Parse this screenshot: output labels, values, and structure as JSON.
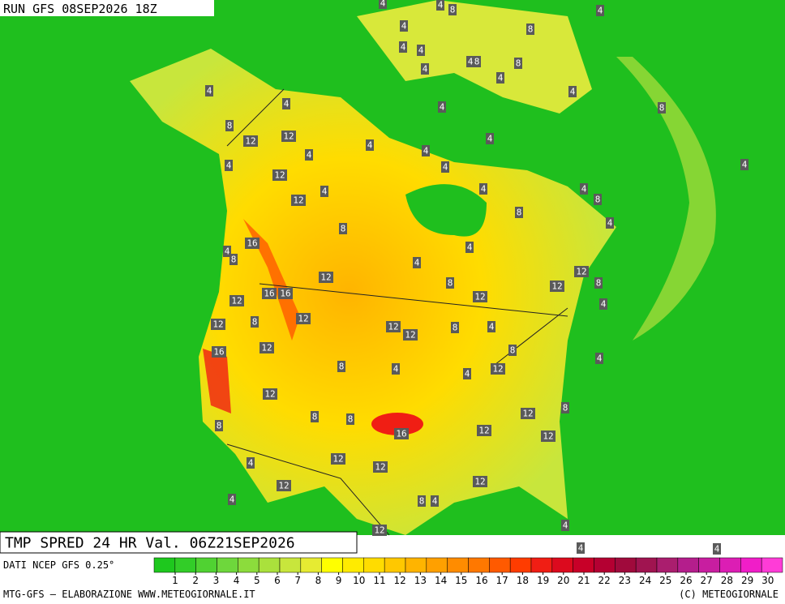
{
  "header": {
    "run": "RUN GFS 08SEP2026 18Z"
  },
  "map": {
    "labels": [
      4,
      4,
      8,
      4,
      4,
      8,
      4,
      4,
      4,
      8,
      8,
      4,
      4,
      4,
      4,
      4,
      4,
      8,
      8,
      12,
      4,
      4,
      4,
      4,
      4,
      4,
      4,
      12,
      4,
      4,
      4,
      8,
      12,
      12,
      8,
      4,
      8,
      16,
      4,
      4,
      8,
      4,
      12,
      12,
      8,
      8,
      12,
      16,
      16,
      12,
      4,
      12,
      8,
      12,
      12,
      12,
      8,
      4,
      12,
      12,
      16,
      8,
      8,
      4,
      4,
      12,
      4,
      12,
      8,
      8,
      8,
      12,
      16,
      12,
      8,
      12,
      12,
      4,
      12,
      12,
      12,
      4,
      8,
      4,
      4,
      12,
      4,
      4
    ]
  },
  "footer": {
    "title": "TMP SPRED 24 HR Val. 06Z21SEP2026",
    "source": "DATI NCEP GFS 0.25°",
    "credit": "MTG-GFS — ELABORAZIONE WWW.METEOGIORNALE.IT",
    "copyright": "(C) METEOGIORNALE"
  },
  "colorbar": {
    "ticks": [
      1,
      2,
      3,
      4,
      5,
      6,
      7,
      8,
      9,
      10,
      11,
      12,
      13,
      14,
      15,
      16,
      17,
      18,
      19,
      20,
      21,
      22,
      23,
      24,
      25,
      26,
      27,
      28,
      29,
      30
    ],
    "colors": [
      "#1ec81e",
      "#32cd28",
      "#50d232",
      "#6ed73c",
      "#8cdc3c",
      "#aae13c",
      "#c8e63c",
      "#e6eb32",
      "#ffff00",
      "#ffeb00",
      "#ffdc00",
      "#ffc800",
      "#ffb400",
      "#ffa000",
      "#ff8c00",
      "#ff7800",
      "#ff5a00",
      "#ff3c00",
      "#f01e14",
      "#dc0a1e",
      "#c80028",
      "#b40032",
      "#a00a3c",
      "#a01450",
      "#aa1e6e",
      "#b41e8c",
      "#c81ea0",
      "#dc1eb4",
      "#f01ec8",
      "#ff3cd7"
    ]
  }
}
